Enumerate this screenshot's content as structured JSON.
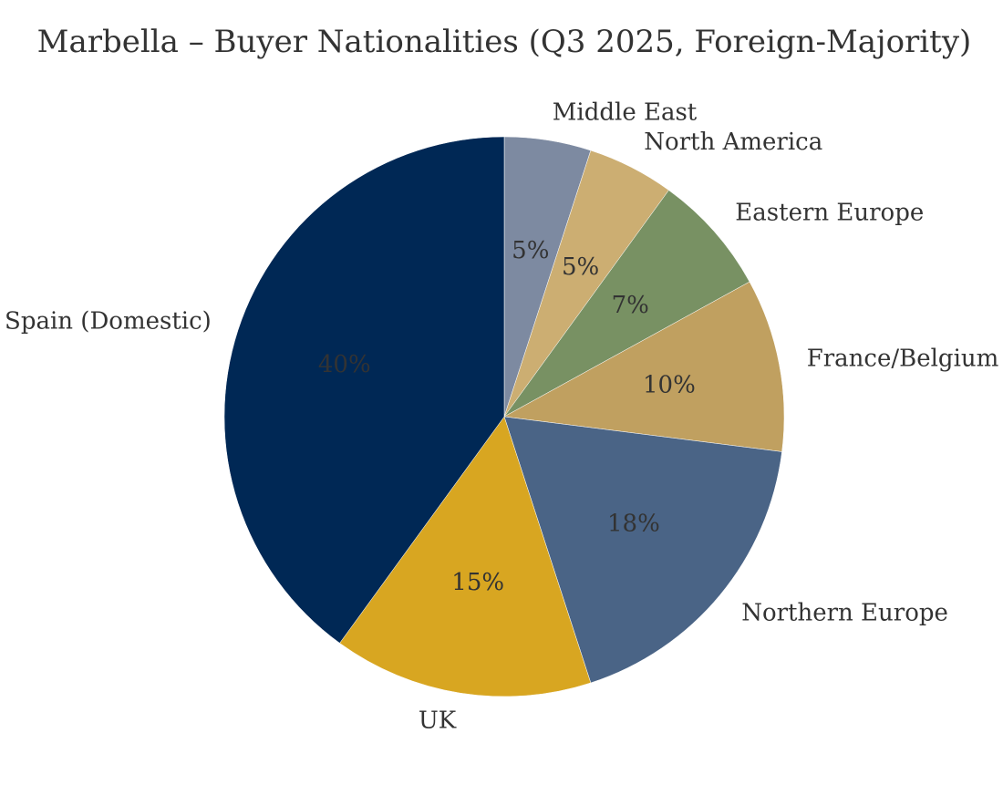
{
  "chart_data": {
    "type": "pie",
    "title": "Marbella – Buyer Nationalities (Q3 2025, Foreign-Majority)",
    "start_angle_deg": 90,
    "direction": "clockwise",
    "label_format": "percent_integer",
    "slices": [
      {
        "label": "Middle East",
        "value": 5,
        "color": "#7d8aa1"
      },
      {
        "label": "North America",
        "value": 5,
        "color": "#ccae72"
      },
      {
        "label": "Eastern Europe",
        "value": 7,
        "color": "#789163"
      },
      {
        "label": "France/Belgium",
        "value": 10,
        "color": "#c0a060"
      },
      {
        "label": "Northern Europe",
        "value": 18,
        "color": "#4a6486"
      },
      {
        "label": "UK",
        "value": 15,
        "color": "#d8a621"
      },
      {
        "label": "Spain (Domestic)",
        "value": 40,
        "color": "#002855"
      }
    ]
  }
}
